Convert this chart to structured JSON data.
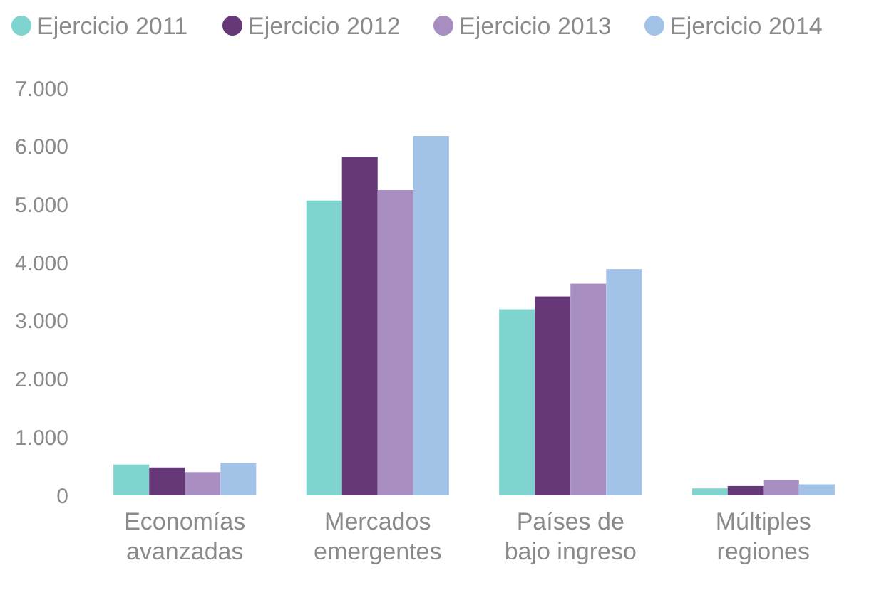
{
  "chart_data": {
    "type": "bar",
    "categories": [
      "Economías\navanzadas",
      "Mercados\nemergentes",
      "Países de\nbajo ingreso",
      "Múltiples\nregiones"
    ],
    "series": [
      {
        "name": "Ejercicio 2011",
        "color": "#80d4d0",
        "values": [
          530,
          5070,
          3200,
          120
        ]
      },
      {
        "name": "Ejercicio 2012",
        "color": "#663877",
        "values": [
          480,
          5820,
          3420,
          160
        ]
      },
      {
        "name": "Ejercicio 2013",
        "color": "#a78dc0",
        "values": [
          400,
          5250,
          3640,
          260
        ]
      },
      {
        "name": "Ejercicio 2014",
        "color": "#a2c2e8",
        "values": [
          560,
          6180,
          3890,
          190
        ]
      }
    ],
    "ylim": [
      0,
      7000
    ],
    "yticks": [
      0,
      {
        "value": 1000,
        "label": "1.000"
      },
      {
        "value": 2000,
        "label": "2.000"
      },
      {
        "value": 3000,
        "label": "3.000"
      },
      {
        "value": 4000,
        "label": "4.000"
      },
      {
        "value": 5000,
        "label": "5.000"
      },
      {
        "value": 6000,
        "label": "6.000"
      },
      {
        "value": 7000,
        "label": "7.000"
      }
    ],
    "grid": false,
    "legend": "top"
  }
}
